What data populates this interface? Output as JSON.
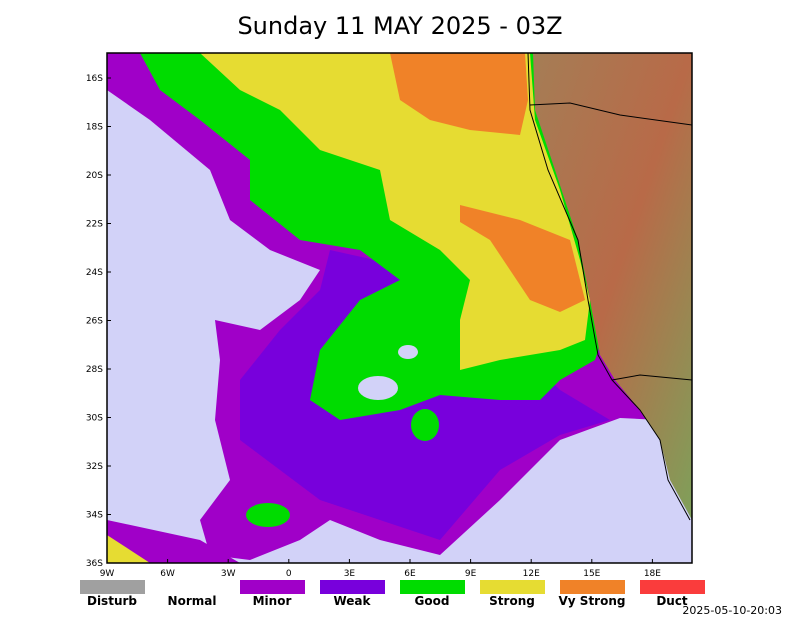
{
  "title": "Sunday 11 MAY 2025 - 03Z",
  "map": {
    "lat_labels": [
      "16S",
      "18S",
      "20S",
      "22S",
      "24S",
      "26S",
      "28S",
      "30S",
      "32S",
      "34S",
      "36S"
    ],
    "lon_labels": [
      "9W",
      "6W",
      "3W",
      "0",
      "3E",
      "6E",
      "9E",
      "12E",
      "15E",
      "18E"
    ]
  },
  "legend": [
    {
      "label": "Disturb",
      "color": "#a0a0a0"
    },
    {
      "label": "Normal",
      "color": "#ffffff"
    },
    {
      "label": "Minor",
      "color": "#a000c8"
    },
    {
      "label": "Weak",
      "color": "#7800dc"
    },
    {
      "label": "Good",
      "color": "#00dc00"
    },
    {
      "label": "Strong",
      "color": "#e6dc32"
    },
    {
      "label": "Vy Strong",
      "color": "#f08228"
    },
    {
      "label": "Duct",
      "color": "#fa3c3c"
    }
  ],
  "timestamp": "2025-05-10-20:03"
}
